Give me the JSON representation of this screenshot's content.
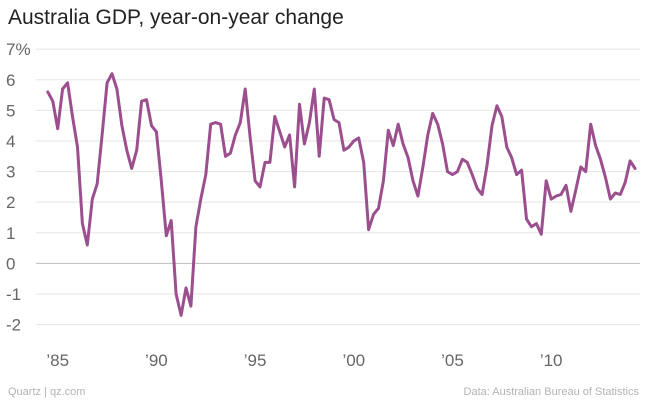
{
  "title": "Australia GDP, year-on-year change",
  "footer": {
    "left": "Quartz | qz.com",
    "right": "Data: Australian Bureau of Statistics"
  },
  "colors": {
    "line": "#9c4f8f",
    "grid": "#e5e5e5",
    "zero_line": "#bdbdbd",
    "tick_text": "#666666",
    "footer_text": "#b3b3b3"
  },
  "chart_data": {
    "type": "line",
    "title": "Australia GDP, year-on-year change",
    "xlabel": "",
    "ylabel": "",
    "ylim": [
      -2.7,
      7.3
    ],
    "xlim": [
      1983.9,
      2014.5
    ],
    "grid": "horizontal",
    "y_ticks": [
      {
        "value": 7,
        "label": "7%"
      },
      {
        "value": 6,
        "label": "6"
      },
      {
        "value": 5,
        "label": "5"
      },
      {
        "value": 4,
        "label": "4"
      },
      {
        "value": 3,
        "label": "3"
      },
      {
        "value": 2,
        "label": "2"
      },
      {
        "value": 1,
        "label": "1"
      },
      {
        "value": 0,
        "label": "0"
      },
      {
        "value": -1,
        "label": "-1"
      },
      {
        "value": -2,
        "label": "-2"
      }
    ],
    "x_ticks": [
      {
        "value": 1985,
        "label": "’85"
      },
      {
        "value": 1990,
        "label": "’90"
      },
      {
        "value": 1995,
        "label": "’95"
      },
      {
        "value": 2000,
        "label": "’00"
      },
      {
        "value": 2005,
        "label": "’05"
      },
      {
        "value": 2010,
        "label": "’10"
      }
    ],
    "series": [
      {
        "x": [
          1984.5,
          1984.75,
          1985.0,
          1985.25,
          1985.5,
          1985.75,
          1986.0,
          1986.25,
          1986.5,
          1986.75,
          1987.0,
          1987.25,
          1987.5,
          1987.75,
          1988.0,
          1988.25,
          1988.5,
          1988.75,
          1989.0,
          1989.25,
          1989.5,
          1989.75,
          1990.0,
          1990.25,
          1990.5,
          1990.75,
          1991.0,
          1991.25,
          1991.5,
          1991.75,
          1992.0,
          1992.25,
          1992.5,
          1992.75,
          1993.0,
          1993.25,
          1993.5,
          1993.75,
          1994.0,
          1994.25,
          1994.5,
          1994.75,
          1995.0,
          1995.25,
          1995.5,
          1995.75,
          1996.0,
          1996.25,
          1996.5,
          1996.75,
          1997.0,
          1997.25,
          1997.5,
          1997.75,
          1998.0,
          1998.25,
          1998.5,
          1998.75,
          1999.0,
          1999.25,
          1999.5,
          1999.75,
          2000.0,
          2000.25,
          2000.5,
          2000.75,
          2001.0,
          2001.25,
          2001.5,
          2001.75,
          2002.0,
          2002.25,
          2002.5,
          2002.75,
          2003.0,
          2003.25,
          2003.5,
          2003.75,
          2004.0,
          2004.25,
          2004.5,
          2004.75,
          2005.0,
          2005.25,
          2005.5,
          2005.75,
          2006.0,
          2006.25,
          2006.5,
          2006.75,
          2007.0,
          2007.25,
          2007.5,
          2007.75,
          2008.0,
          2008.25,
          2008.5,
          2008.75,
          2009.0,
          2009.25,
          2009.5,
          2009.75,
          2010.0,
          2010.25,
          2010.5,
          2010.75,
          2011.0,
          2011.25,
          2011.5,
          2011.75,
          2012.0,
          2012.25,
          2012.5,
          2012.75,
          2013.0,
          2013.25,
          2013.5,
          2013.75,
          2014.0,
          2014.25
        ],
        "values": [
          5.6,
          5.3,
          4.4,
          5.7,
          5.9,
          4.8,
          3.8,
          1.3,
          0.6,
          2.1,
          2.6,
          4.2,
          5.9,
          6.2,
          5.7,
          4.5,
          3.7,
          3.1,
          3.7,
          5.3,
          5.35,
          4.5,
          4.3,
          2.7,
          0.9,
          1.4,
          -1.0,
          -1.7,
          -0.8,
          -1.4,
          1.2,
          2.1,
          2.9,
          4.55,
          4.6,
          4.55,
          3.5,
          3.6,
          4.2,
          4.6,
          5.7,
          4.1,
          2.7,
          2.5,
          3.3,
          3.3,
          4.8,
          4.3,
          3.8,
          4.2,
          2.5,
          5.2,
          3.9,
          4.6,
          5.7,
          3.5,
          5.4,
          5.35,
          4.7,
          4.6,
          3.7,
          3.8,
          4.0,
          4.1,
          3.3,
          1.1,
          1.6,
          1.8,
          2.7,
          4.35,
          3.85,
          4.55,
          3.9,
          3.45,
          2.7,
          2.2,
          3.15,
          4.2,
          4.9,
          4.55,
          3.9,
          3.0,
          2.9,
          3.0,
          3.4,
          3.3,
          2.9,
          2.45,
          2.25,
          3.2,
          4.5,
          5.15,
          4.8,
          3.8,
          3.45,
          2.9,
          3.05,
          1.45,
          1.2,
          1.3,
          0.95,
          2.7,
          2.1,
          2.2,
          2.25,
          2.55,
          1.7,
          2.4,
          3.15,
          3.0,
          4.55,
          3.85,
          3.4,
          2.8,
          2.1,
          2.3,
          2.25,
          2.65,
          3.35,
          3.1
        ]
      }
    ]
  }
}
